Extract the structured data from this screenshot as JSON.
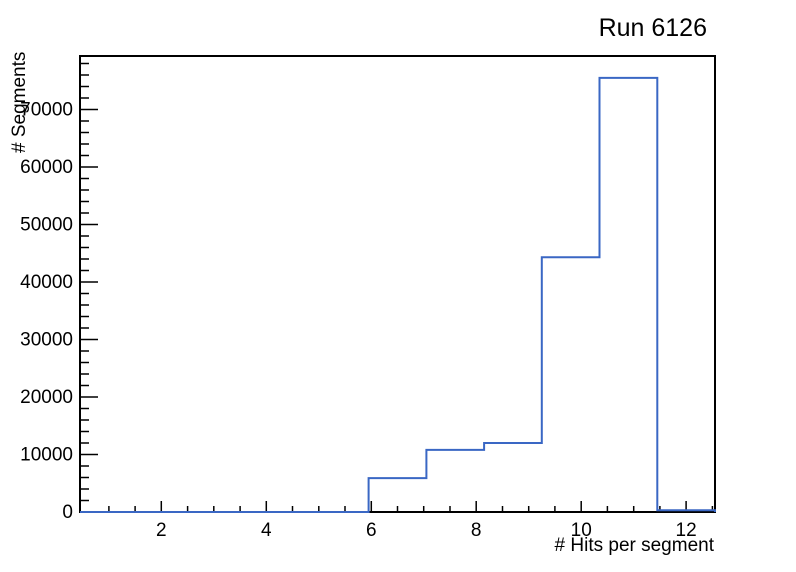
{
  "window": {
    "background": "#ffffff"
  },
  "colors": {
    "hist_line": "#3a67c4",
    "axis": "#000000",
    "text": "#000000"
  },
  "chart_data": {
    "type": "histogram-step",
    "title": "Run 6126",
    "xlabel": "# Hits per segment",
    "ylabel": "# Segments",
    "xlim": [
      0.45,
      12.55
    ],
    "ylim": [
      0,
      79300
    ],
    "bin_width": 1.1,
    "bin_edges": [
      0.45,
      1.55,
      2.65,
      3.75,
      4.85,
      5.95,
      7.05,
      8.15,
      9.25,
      10.35,
      11.45,
      12.55
    ],
    "counts": [
      0,
      0,
      0,
      0,
      0,
      5900,
      10800,
      12000,
      44300,
      75500,
      300
    ],
    "x_major_ticks": [
      2,
      4,
      6,
      8,
      10,
      12
    ],
    "x_tick_labels": [
      "2",
      "4",
      "6",
      "8",
      "10",
      "12"
    ],
    "x_minor_ticks": [
      1,
      1.5,
      2.5,
      3,
      3.5,
      4.5,
      5,
      5.5,
      6.5,
      7,
      7.5,
      8.5,
      9,
      9.5,
      10.5,
      11,
      11.5,
      12.5
    ],
    "y_major_ticks": [
      0,
      10000,
      20000,
      30000,
      40000,
      50000,
      60000,
      70000
    ],
    "y_tick_labels": [
      "0",
      "10000",
      "20000",
      "30000",
      "40000",
      "50000",
      "60000",
      "70000"
    ],
    "y_minor_step": 2000,
    "grid": false,
    "legend": null
  }
}
